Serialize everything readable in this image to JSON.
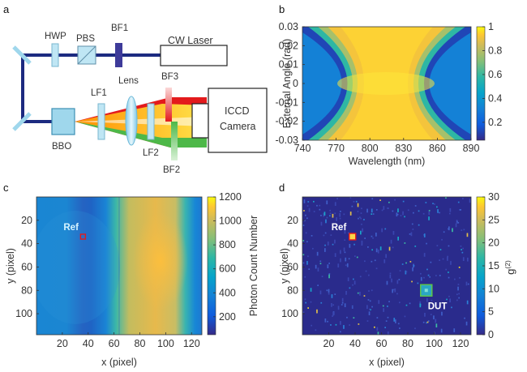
{
  "panels": {
    "a": "a",
    "b": "b",
    "c": "c",
    "d": "d"
  },
  "setup": {
    "labels": {
      "hwp": "HWP",
      "pbs": "PBS",
      "bf1": "BF1",
      "laser": "CW Laser",
      "lf1": "LF1",
      "lens": "Lens",
      "bf3": "BF3",
      "iccd": "ICCD",
      "camera": "Camera",
      "bbo": "BBO",
      "lf2": "LF2",
      "bf2": "BF2"
    },
    "colors": {
      "beam": "#1c2a80",
      "red": "#e31a1c",
      "green": "#4db848",
      "optic": "#9fd7ec"
    }
  },
  "chart_data": [
    {
      "panel": "b",
      "type": "heatmap",
      "xlabel": "Wavelength (nm)",
      "ylabel": "External Angle (rad)",
      "x_ticks": [
        740,
        770,
        800,
        830,
        860,
        890
      ],
      "y_ticks": [
        0.03,
        0.02,
        0.01,
        0,
        -0.01,
        -0.02,
        -0.03
      ],
      "y_tick_labels": [
        "0.03",
        "0.02",
        "0.01",
        "0",
        "-0.01",
        "-0.02",
        "-0.03"
      ],
      "xlim": [
        740,
        890
      ],
      "ylim": [
        -0.03,
        0.03
      ],
      "colorbar": {
        "ticks": [
          1,
          0.8,
          0.6,
          0.4,
          0.2
        ],
        "tick_labels": [
          "1",
          "0.8",
          "0.6",
          "0.4",
          "0.2"
        ],
        "range": [
          0.05,
          1
        ]
      },
      "colormap": "parula",
      "description_of_pattern": "X-shaped joint spectrum, maximum near 0 rad, degenerate at 815 nm"
    },
    {
      "panel": "c",
      "type": "heatmap",
      "xlabel": "x (pixel)",
      "ylabel": "y (pixel)",
      "x_ticks": [
        20,
        40,
        60,
        80,
        100,
        120
      ],
      "y_ticks": [
        20,
        40,
        60,
        80,
        100
      ],
      "xlim": [
        0,
        128
      ],
      "ylim": [
        0,
        118
      ],
      "colorbar": {
        "label": "Photon Count Number",
        "ticks": [
          1200,
          1000,
          800,
          600,
          400,
          200
        ],
        "range": [
          50,
          1200
        ]
      },
      "colormap": "parula",
      "annotations": [
        {
          "text": "Ref",
          "x": 36,
          "y": 34
        }
      ]
    },
    {
      "panel": "d",
      "type": "heatmap",
      "xlabel": "x (pixel)",
      "ylabel": "y (pixel)",
      "x_ticks": [
        20,
        40,
        60,
        80,
        100,
        120
      ],
      "y_ticks": [
        20,
        40,
        60,
        80,
        100
      ],
      "xlim": [
        0,
        128
      ],
      "ylim": [
        0,
        118
      ],
      "colorbar": {
        "label": "g",
        "label_sup": "(2)",
        "ticks": [
          30,
          25,
          20,
          15,
          10,
          5,
          0
        ],
        "range": [
          0,
          30
        ]
      },
      "colormap": "parula",
      "annotations": [
        {
          "text": "Ref",
          "x": 38,
          "y": 34
        },
        {
          "text": "DUT",
          "x": 94,
          "y": 80
        }
      ]
    }
  ]
}
